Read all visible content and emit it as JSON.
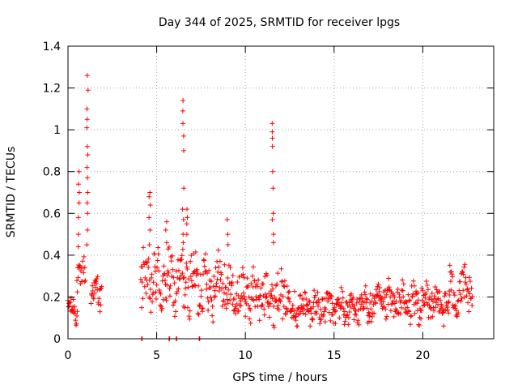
{
  "chart_data": {
    "type": "scatter",
    "title": "Day 344 of 2025, SRMTID for receiver lpgs",
    "xlabel": "GPS time / hours",
    "ylabel": "SRMTID / TECUs",
    "xlim": [
      0,
      24
    ],
    "ylim": [
      0,
      1.4
    ],
    "xticks": [
      0,
      5,
      10,
      15,
      20
    ],
    "xtick_labels": [
      "0",
      "5",
      "10",
      "15",
      "20"
    ],
    "yticks": [
      0,
      0.2,
      0.4,
      0.6,
      0.8,
      1,
      1.2,
      1.4
    ],
    "ytick_labels": [
      "0",
      "0.2",
      "0.4",
      "0.6",
      "0.8",
      "1",
      "1.2",
      "1.4"
    ],
    "grid": true,
    "marker": "+",
    "color": "#ff0000",
    "series": [
      {
        "name": "SRMTID",
        "segments": [
          {
            "t0": 0.0,
            "t1": 0.55,
            "base": 0.14,
            "amp": 0.06
          },
          {
            "t0": 0.5,
            "t1": 1.0,
            "base": 0.3,
            "amp": 0.08
          },
          {
            "t0": 1.3,
            "t1": 1.9,
            "base": 0.22,
            "amp": 0.08
          },
          {
            "t0": 4.1,
            "t1": 9.0,
            "base": 0.27,
            "amp": 0.15
          },
          {
            "t0": 9.0,
            "t1": 12.5,
            "base": 0.21,
            "amp": 0.12
          },
          {
            "t0": 12.5,
            "t1": 17.0,
            "base": 0.15,
            "amp": 0.08
          },
          {
            "t0": 17.0,
            "t1": 21.5,
            "base": 0.17,
            "amp": 0.09
          },
          {
            "t0": 21.5,
            "t1": 22.8,
            "base": 0.22,
            "amp": 0.12
          }
        ],
        "spikes": [
          {
            "x": 0.6,
            "y": [
              0.8,
              0.74,
              0.7,
              0.65,
              0.58,
              0.5,
              0.44
            ]
          },
          {
            "x": 1.1,
            "y": [
              1.26,
              1.19,
              1.1,
              1.05,
              1.01,
              0.92,
              0.88,
              0.82,
              0.77,
              0.7,
              0.65,
              0.6,
              0.52,
              0.45
            ]
          },
          {
            "x": 4.6,
            "y": [
              0.7,
              0.68,
              0.64,
              0.58,
              0.52,
              0.45
            ]
          },
          {
            "x": 5.55,
            "y": [
              0.56,
              0.52,
              0.46
            ]
          },
          {
            "x": 6.5,
            "y": [
              1.14,
              1.09,
              1.03,
              0.97,
              0.9,
              0.72,
              0.62,
              0.57,
              0.5,
              0.46
            ]
          },
          {
            "x": 6.7,
            "y": [
              0.62,
              0.58,
              0.55,
              0.5
            ]
          },
          {
            "x": 9.0,
            "y": [
              0.57,
              0.5,
              0.45
            ]
          },
          {
            "x": 11.55,
            "y": [
              1.03,
              0.99,
              0.96,
              0.92,
              0.8,
              0.72,
              0.6,
              0.57,
              0.5,
              0.46
            ]
          }
        ],
        "zeros": [
          4.15,
          5.7,
          6.1,
          7.4
        ]
      }
    ]
  }
}
